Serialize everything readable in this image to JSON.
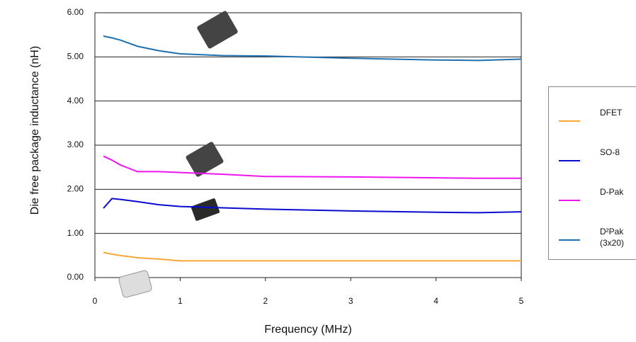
{
  "chart_data": {
    "type": "line",
    "x_label": "Frequency (MHz)",
    "y_label": "Die free package inductance (nH)",
    "x": [
      0.1,
      0.2,
      0.3,
      0.5,
      0.75,
      1,
      1.5,
      2,
      3,
      4,
      4.5,
      5
    ],
    "series": [
      {
        "name": "DFET",
        "color": "#f7a836",
        "values": [
          0.57,
          0.53,
          0.5,
          0.45,
          0.42,
          0.38,
          0.38,
          0.38,
          0.38,
          0.38,
          0.38,
          0.38
        ]
      },
      {
        "name": "SO-8",
        "color": "#0a0ad0",
        "values": [
          1.57,
          1.79,
          1.77,
          1.72,
          1.65,
          1.61,
          1.58,
          1.55,
          1.51,
          1.48,
          1.47,
          1.49
        ]
      },
      {
        "name": "D-Pak",
        "color": "#ee16ee",
        "values": [
          2.75,
          2.66,
          2.55,
          2.4,
          2.4,
          2.38,
          2.34,
          2.29,
          2.28,
          2.26,
          2.25,
          2.25
        ]
      },
      {
        "name": "D²Pak (3x20)",
        "color": "#1f70b0",
        "values": [
          5.47,
          5.43,
          5.38,
          5.24,
          5.14,
          5.07,
          5.03,
          5.02,
          4.97,
          4.93,
          4.92,
          4.95
        ]
      }
    ],
    "xlim": [
      0,
      5
    ],
    "xticks": [
      0,
      1,
      2,
      3,
      4,
      5
    ],
    "ylim": [
      0,
      6
    ],
    "yticks": [
      {
        "value": 0,
        "label": "0.00"
      },
      {
        "value": 1,
        "label": "1.00"
      },
      {
        "value": 2,
        "label": "2.00"
      },
      {
        "value": 3,
        "label": "3.00"
      },
      {
        "value": 4,
        "label": "4.00"
      },
      {
        "value": 5,
        "label": "5.00"
      },
      {
        "value": 6,
        "label": "6.00"
      }
    ],
    "grid": true,
    "legend": "right"
  }
}
